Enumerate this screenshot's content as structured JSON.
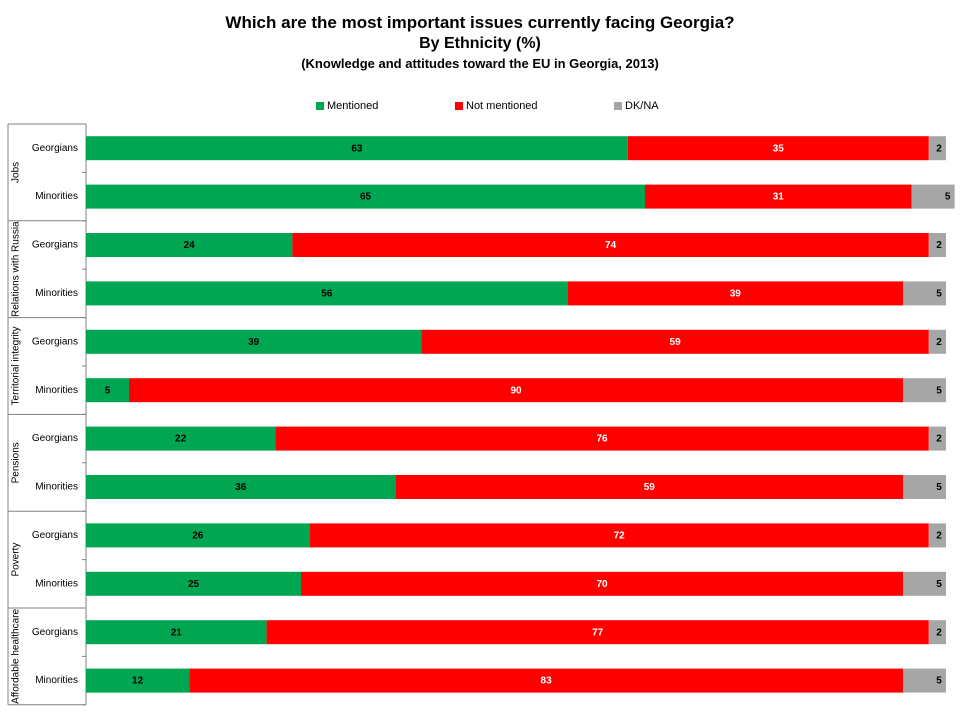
{
  "chart_data": {
    "type": "bar",
    "orientation": "horizontal",
    "stacked": true,
    "title": "Which are the most important issues currently facing Georgia?",
    "subtitle": "By Ethnicity (%)",
    "source_note": "(Knowledge and attitudes toward the EU in Georgia, 2013)",
    "legend_position": "top",
    "groups": [
      "Jobs",
      "Relations with Russia",
      "Territorial integrity",
      "Pensions",
      "Poverty",
      "Affordable healthcare"
    ],
    "categories": [
      "Georgians",
      "Minorities",
      "Georgians",
      "Minorities",
      "Georgians",
      "Minorities",
      "Georgians",
      "Minorities",
      "Georgians",
      "Minorities",
      "Georgians",
      "Minorities"
    ],
    "series": [
      {
        "name": "Mentioned",
        "color": "#00a651",
        "label_color": "#000000",
        "values": [
          63,
          65,
          24,
          56,
          39,
          5,
          22,
          36,
          26,
          25,
          21,
          12
        ]
      },
      {
        "name": "Not mentioned",
        "color": "#ff0000",
        "label_color": "#ffffff",
        "values": [
          35,
          31,
          74,
          39,
          59,
          90,
          76,
          59,
          72,
          70,
          77,
          83
        ]
      },
      {
        "name": "DK/NA",
        "color": "#a6a6a6",
        "label_color": "#000000",
        "values": [
          2,
          5,
          2,
          5,
          2,
          5,
          2,
          5,
          2,
          5,
          2,
          5
        ]
      }
    ],
    "xlim": [
      0,
      100
    ],
    "grid": false
  }
}
